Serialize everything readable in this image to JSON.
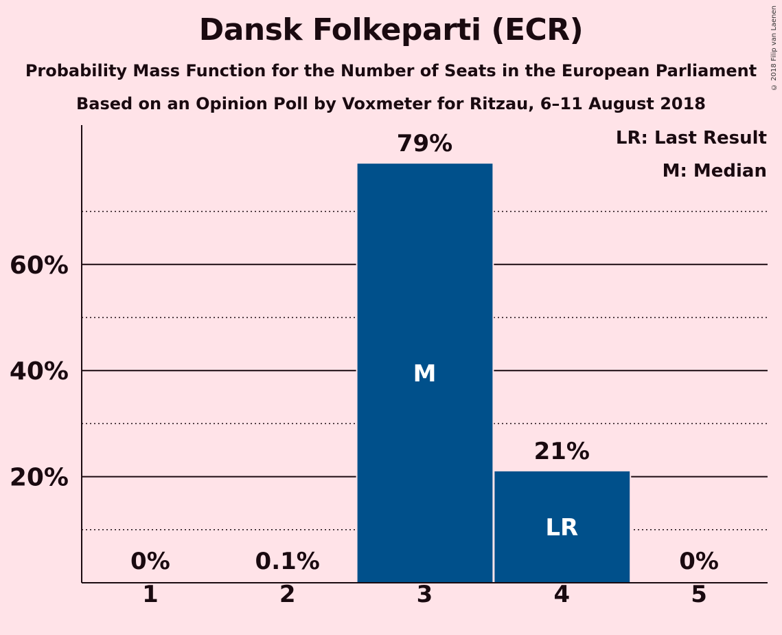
{
  "header": {
    "title": "Dansk Folkeparti (ECR)",
    "subtitle": "Probability Mass Function for the Number of Seats in the European Parliament",
    "subtitle2": "Based on an Opinion Poll by Voxmeter for Ritzau, 6–11 August 2018",
    "copyright": "© 2018 Filip van Laenen"
  },
  "legend": {
    "lr": "LR: Last Result",
    "m": "M: Median"
  },
  "colors": {
    "background": "#ffe3e8",
    "bar": "#00508b",
    "text": "#1a0a10"
  },
  "chart_data": {
    "type": "bar",
    "categories": [
      "1",
      "2",
      "3",
      "4",
      "5"
    ],
    "values": [
      0,
      0.1,
      79,
      21,
      0
    ],
    "data_labels": [
      "0%",
      "0.1%",
      "79%",
      "21%",
      "0%"
    ],
    "bar_markers": [
      "",
      "",
      "M",
      "LR",
      ""
    ],
    "y_ticks": [
      20,
      40,
      60
    ],
    "y_tick_labels": [
      "20%",
      "40%",
      "60%"
    ],
    "y_minor_ticks": [
      10,
      30,
      50,
      70
    ],
    "ylim": [
      0,
      86
    ],
    "grid": true,
    "legend_position": "top-right"
  }
}
